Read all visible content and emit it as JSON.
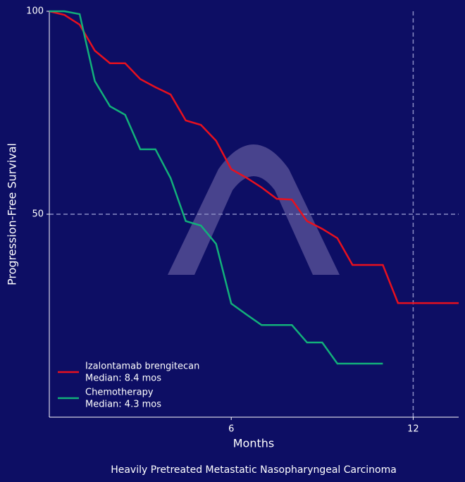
{
  "chart_data": {
    "type": "line",
    "caption": "Heavily Pretreated Metastatic Nasopharyngeal Carcinoma",
    "x_label": "Months",
    "y_label": "Progression-Free Survival",
    "xlim": [
      0,
      13.5
    ],
    "ylim": [
      0,
      100
    ],
    "xticks": [
      6,
      12
    ],
    "yticks": [
      50,
      100
    ],
    "reference_lines": {
      "x": 12,
      "y": 50
    },
    "legend": "lower left",
    "series": [
      {
        "name": "Izalontamab brengitecan",
        "note": "Median: 8.4 mos",
        "color": "#e8101e",
        "x": [
          0,
          0.5,
          1,
          1.5,
          2,
          2.5,
          3,
          3.5,
          4,
          4.5,
          5,
          5.5,
          6,
          6.5,
          7,
          7.5,
          8,
          8.5,
          9,
          9.5,
          10,
          10.5,
          11,
          11.5,
          12,
          13.5
        ],
        "values": [
          100,
          99.1,
          96.7,
          90.3,
          87.2,
          87.2,
          83.3,
          81.3,
          79.5,
          73.1,
          72.0,
          68.1,
          61.1,
          59.0,
          56.6,
          53.8,
          53.6,
          48.3,
          46.4,
          44.1,
          37.5,
          37.5,
          37.5,
          28.1,
          28.1,
          28.1
        ]
      },
      {
        "name": "Chemotherapy",
        "note": "Median: 4.3 mos",
        "color": "#12b07a",
        "x": [
          0,
          0.5,
          1,
          1.5,
          2,
          2.5,
          3,
          3.5,
          4,
          4.5,
          5,
          5.5,
          6,
          6.5,
          7,
          7.5,
          8,
          8.5,
          9,
          9.5,
          10,
          10.5,
          11
        ],
        "values": [
          100,
          100,
          99.3,
          82.8,
          76.6,
          74.5,
          66.0,
          66.0,
          58.9,
          48.3,
          47.2,
          42.7,
          28.0,
          25.3,
          22.7,
          22.7,
          22.7,
          18.4,
          18.4,
          13.2,
          13.2,
          13.2,
          13.2
        ]
      }
    ]
  }
}
